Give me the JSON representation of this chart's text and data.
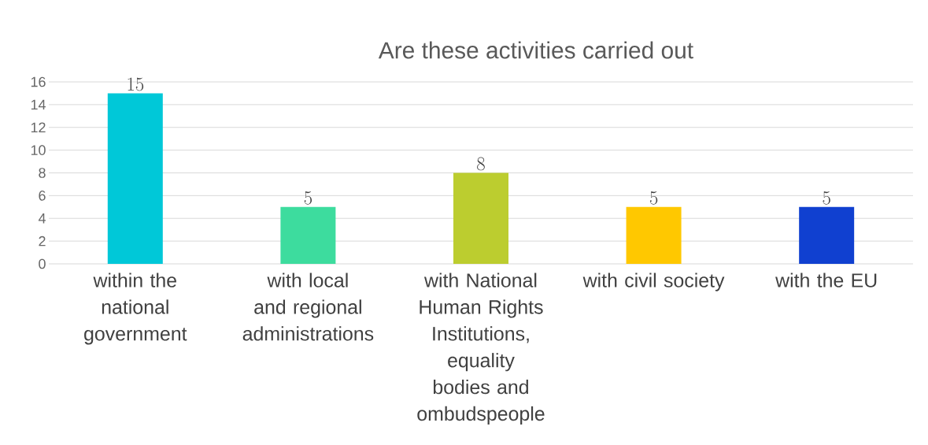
{
  "chart_data": {
    "type": "bar",
    "title": "Are these activities carried out",
    "categories": [
      "within the national government",
      "with local and regional administrations",
      "with National Human Rights Institutions, equality bodies and ombudspeople",
      "with civil society",
      "with the EU"
    ],
    "values": [
      15,
      5,
      8,
      5,
      5
    ],
    "colors": [
      "#00c8d8",
      "#3ddc9e",
      "#bccd2f",
      "#ffc800",
      "#1040d0"
    ],
    "ylim": [
      0,
      16
    ],
    "yticks": [
      0,
      2,
      4,
      6,
      8,
      10,
      12,
      14,
      16
    ],
    "grid": "y",
    "data_labels": true
  }
}
